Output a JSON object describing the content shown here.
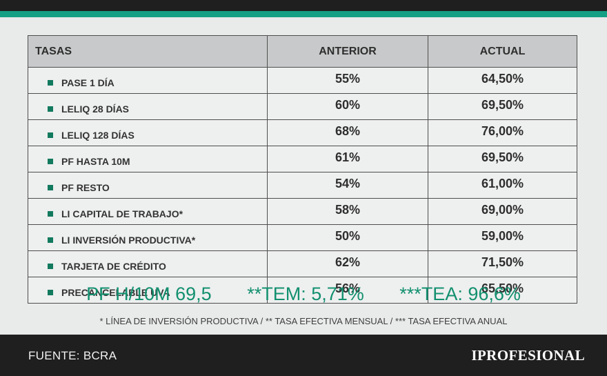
{
  "table": {
    "headers": [
      "TASAS",
      "ANTERIOR",
      "ACTUAL"
    ],
    "rows": [
      {
        "name": "PASE 1 DÍA",
        "anterior": "55%",
        "actual": "64,50%"
      },
      {
        "name": "LELIQ 28 DÍAS",
        "anterior": "60%",
        "actual": "69,50%"
      },
      {
        "name": "LELIQ 128 DÍAS",
        "anterior": "68%",
        "actual": "76,00%"
      },
      {
        "name": "PF HASTA 10M",
        "anterior": "61%",
        "actual": "69,50%"
      },
      {
        "name": "PF RESTO",
        "anterior": "54%",
        "actual": "61,00%"
      },
      {
        "name": "LI CAPITAL DE TRABAJO*",
        "anterior": "58%",
        "actual": "69,00%"
      },
      {
        "name": "LI INVERSIÓN PRODUCTIVA*",
        "anterior": "50%",
        "actual": "59,00%"
      },
      {
        "name": "TARJETA DE CRÉDITO",
        "anterior": "62%",
        "actual": "71,50%"
      },
      {
        "name": "PRECANCELABLE UVA",
        "anterior": "56%",
        "actual": "65,50%"
      }
    ]
  },
  "summary": {
    "pf": "PF H/10M 69,5",
    "tem": "**TEM: 5,71%",
    "tea": "***TEA: 96,6%"
  },
  "footnote": "* LÍNEA DE INVERSIÓN PRODUCTIVA  /  ** TASA EFECTIVA MENSUAL  /  *** TASA EFECTIVA ANUAL",
  "footer": {
    "source": "FUENTE: BCRA",
    "logo": "IPROFESIONAL"
  },
  "colors": {
    "accent": "#14a085",
    "summary_text": "#12906f",
    "bullet": "#127a5e",
    "header_bg": "#c8c9ca",
    "bar": "#1f1f1f"
  }
}
